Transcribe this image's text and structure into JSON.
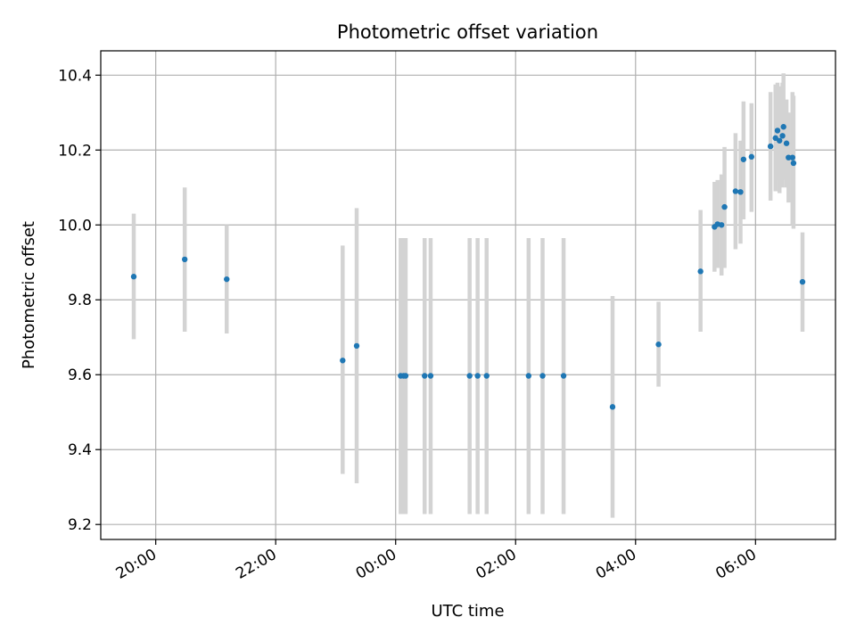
{
  "chart_data": {
    "type": "scatter",
    "title": "Photometric offset variation",
    "xlabel": "UTC time",
    "ylabel": "Photometric offset",
    "grid": true,
    "xlim": [
      "19:05",
      "31:20"
    ],
    "ylim": [
      9.16,
      10.465
    ],
    "x_ticks": [
      {
        "value": "20:00",
        "label": "20:00"
      },
      {
        "value": "22:00",
        "label": "22:00"
      },
      {
        "value": "24:00",
        "label": "00:00"
      },
      {
        "value": "26:00",
        "label": "02:00"
      },
      {
        "value": "28:00",
        "label": "04:00"
      },
      {
        "value": "30:00",
        "label": "06:00"
      }
    ],
    "y_ticks": [
      9.2,
      9.4,
      9.6,
      9.8,
      10.0,
      10.2,
      10.4
    ],
    "y_tick_labels": [
      "9.2",
      "9.4",
      "9.6",
      "9.8",
      "10.0",
      "10.2",
      "10.4"
    ],
    "colors": {
      "point": "#1f77b4",
      "errorbar": "#d3d3d3",
      "grid": "#b0b0b0"
    },
    "points": [
      {
        "x": "19:38",
        "y": 9.862,
        "low": 9.695,
        "high": 10.03
      },
      {
        "x": "20:29",
        "y": 9.908,
        "low": 9.715,
        "high": 10.1
      },
      {
        "x": "21:11",
        "y": 9.855,
        "low": 9.71,
        "high": 10.0
      },
      {
        "x": "23:07",
        "y": 9.638,
        "low": 9.335,
        "high": 9.945
      },
      {
        "x": "23:21",
        "y": 9.677,
        "low": 9.31,
        "high": 10.045
      },
      {
        "x": "24:05",
        "y": 9.597,
        "low": 9.228,
        "high": 9.965
      },
      {
        "x": "24:08",
        "y": 9.597,
        "low": 9.228,
        "high": 9.965
      },
      {
        "x": "24:10",
        "y": 9.597,
        "low": 9.228,
        "high": 9.965
      },
      {
        "x": "24:29",
        "y": 9.597,
        "low": 9.228,
        "high": 9.965
      },
      {
        "x": "24:35",
        "y": 9.597,
        "low": 9.228,
        "high": 9.965
      },
      {
        "x": "25:14",
        "y": 9.597,
        "low": 9.228,
        "high": 9.965
      },
      {
        "x": "25:22",
        "y": 9.597,
        "low": 9.228,
        "high": 9.965
      },
      {
        "x": "25:31",
        "y": 9.597,
        "low": 9.228,
        "high": 9.965
      },
      {
        "x": "26:13",
        "y": 9.597,
        "low": 9.228,
        "high": 9.965
      },
      {
        "x": "26:27",
        "y": 9.597,
        "low": 9.228,
        "high": 9.965
      },
      {
        "x": "26:48",
        "y": 9.597,
        "low": 9.228,
        "high": 9.965
      },
      {
        "x": "27:37",
        "y": 9.514,
        "low": 9.218,
        "high": 9.81
      },
      {
        "x": "28:23",
        "y": 9.681,
        "low": 9.568,
        "high": 9.795
      },
      {
        "x": "29:05",
        "y": 9.876,
        "low": 9.715,
        "high": 10.04
      },
      {
        "x": "29:19",
        "y": 9.995,
        "low": 9.875,
        "high": 10.115
      },
      {
        "x": "29:22",
        "y": 10.002,
        "low": 9.885,
        "high": 10.12
      },
      {
        "x": "29:26",
        "y": 10.0,
        "low": 9.865,
        "high": 10.135
      },
      {
        "x": "29:29",
        "y": 10.048,
        "low": 9.885,
        "high": 10.208
      },
      {
        "x": "29:40",
        "y": 10.09,
        "low": 9.935,
        "high": 10.245
      },
      {
        "x": "29:45",
        "y": 10.088,
        "low": 9.95,
        "high": 10.225
      },
      {
        "x": "29:48",
        "y": 10.175,
        "low": 10.015,
        "high": 10.33
      },
      {
        "x": "29:56",
        "y": 10.182,
        "low": 10.035,
        "high": 10.325
      },
      {
        "x": "30:15",
        "y": 10.21,
        "low": 10.065,
        "high": 10.355
      },
      {
        "x": "30:20",
        "y": 10.232,
        "low": 10.09,
        "high": 10.375
      },
      {
        "x": "30:22",
        "y": 10.252,
        "low": 10.12,
        "high": 10.38
      },
      {
        "x": "30:24",
        "y": 10.225,
        "low": 10.085,
        "high": 10.37
      },
      {
        "x": "30:27",
        "y": 10.238,
        "low": 10.1,
        "high": 10.38
      },
      {
        "x": "30:28",
        "y": 10.262,
        "low": 10.12,
        "high": 10.405
      },
      {
        "x": "30:31",
        "y": 10.218,
        "low": 10.1,
        "high": 10.335
      },
      {
        "x": "30:33",
        "y": 10.18,
        "low": 10.06,
        "high": 10.3
      },
      {
        "x": "30:37",
        "y": 10.18,
        "low": 10.0,
        "high": 10.355
      },
      {
        "x": "30:38",
        "y": 10.165,
        "low": 9.99,
        "high": 10.345
      },
      {
        "x": "30:47",
        "y": 9.848,
        "low": 9.715,
        "high": 9.98
      }
    ]
  }
}
